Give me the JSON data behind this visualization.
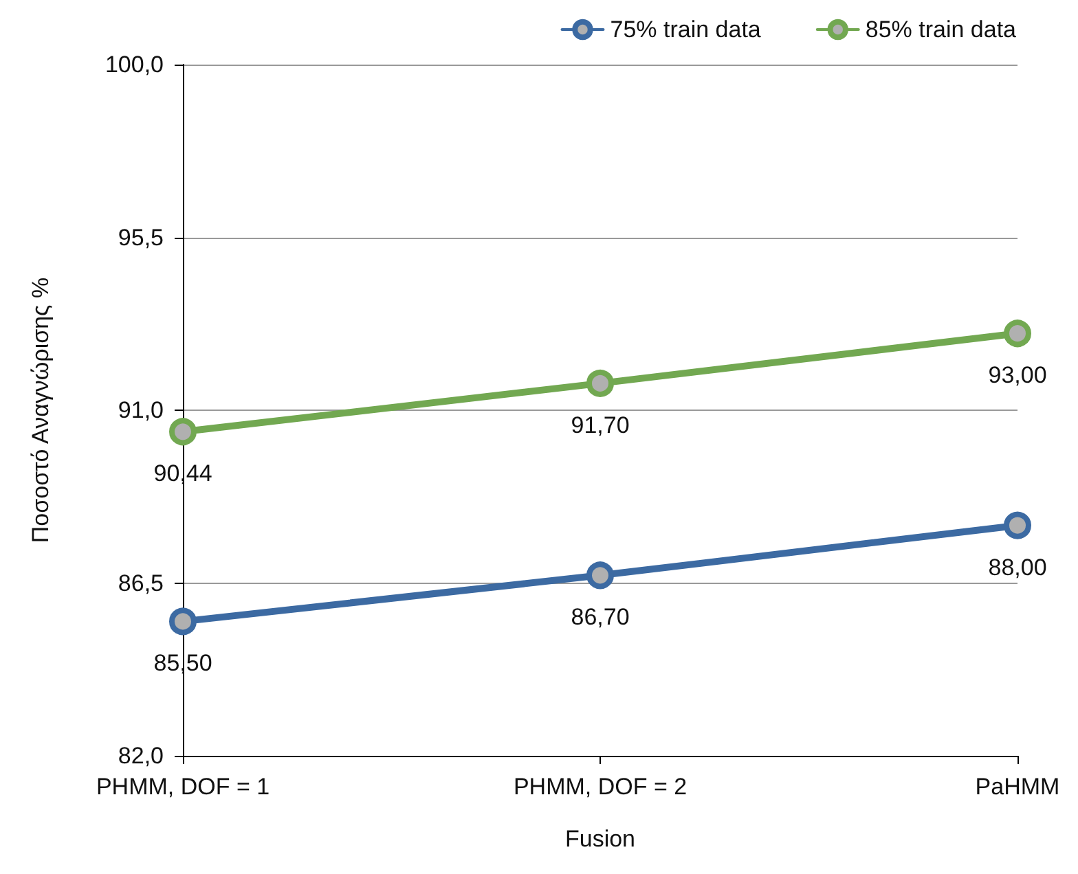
{
  "chart_data": {
    "type": "line",
    "xlabel": "Fusion",
    "ylabel": "Ποσοστό Αναγνώρισης %",
    "categories": [
      "PHMM, DOF = 1",
      "PHMM, DOF = 2",
      "PaHMM"
    ],
    "series": [
      {
        "name": "75% train data",
        "color": "#3c6aa2",
        "values": [
          85.5,
          86.7,
          88.0
        ],
        "value_labels": [
          "85,50",
          "86,70",
          "88,00"
        ]
      },
      {
        "name": "85% train data",
        "color": "#72a851",
        "values": [
          90.44,
          91.7,
          93.0
        ],
        "value_labels": [
          "90,44",
          "91,70",
          "93,00"
        ]
      }
    ],
    "ylim": [
      82,
      100
    ],
    "yticks": [
      {
        "value": 82,
        "label": "82,0"
      },
      {
        "value": 86.5,
        "label": "86,5"
      },
      {
        "value": 91,
        "label": "91,0"
      },
      {
        "value": 95.5,
        "label": "95,5"
      },
      {
        "value": 100,
        "label": "100,0"
      }
    ],
    "grid": "y",
    "legend": "top right",
    "marker": "circle",
    "line_style": "solid"
  }
}
